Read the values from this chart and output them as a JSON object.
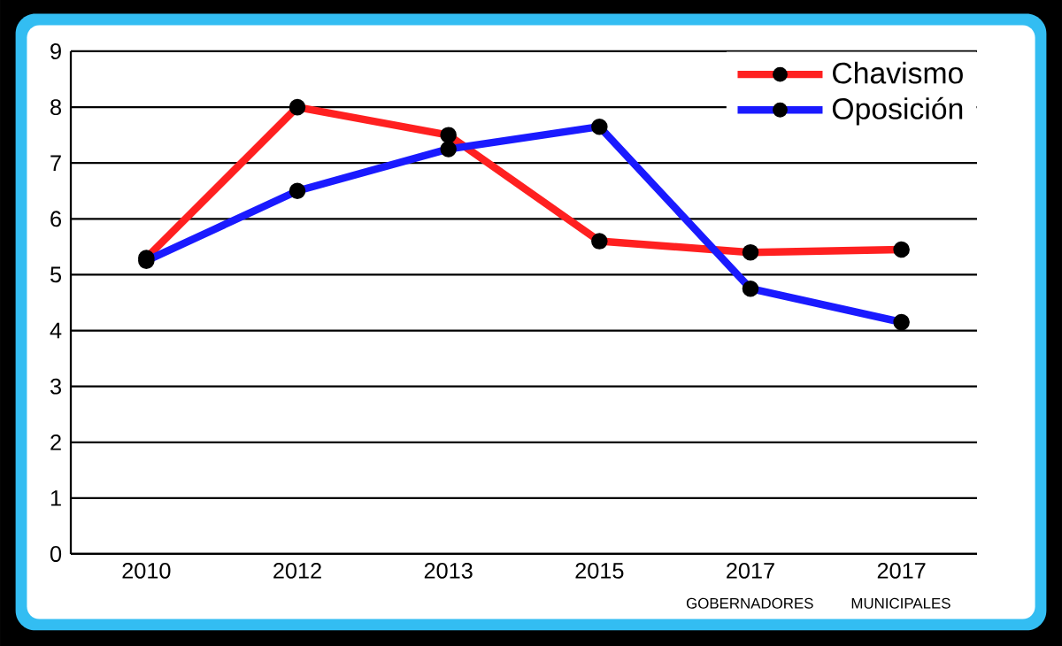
{
  "chart_data": {
    "type": "line",
    "categories": [
      "2010",
      "2012",
      "2013",
      "2015",
      "2017 $_{GOBERNADORES}$",
      "2017 $_{MUNICIPALES}$"
    ],
    "series": [
      {
        "name": "Chavismo",
        "color": "#ff2020",
        "values": [
          5.3,
          8.0,
          7.5,
          5.6,
          5.4,
          5.45
        ]
      },
      {
        "name": "Oposición",
        "color": "#1a1aff",
        "values": [
          5.25,
          6.5,
          7.25,
          7.65,
          4.75,
          4.15
        ]
      }
    ],
    "ylim": [
      0,
      9
    ],
    "yticks": [
      0,
      1,
      2,
      3,
      4,
      5,
      6,
      7,
      8,
      9
    ],
    "grid": "y",
    "legend": "top right",
    "marker": "circle",
    "line_style": "solid"
  }
}
